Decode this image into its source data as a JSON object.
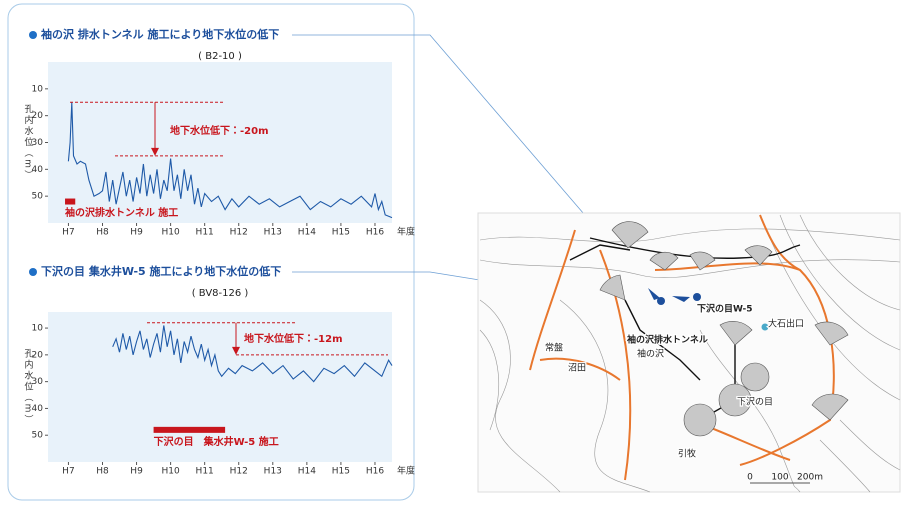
{
  "chart_data": [
    {
      "type": "line",
      "title": "袖の沢 排水トンネル 施工により地下水位の低下",
      "subtitle": "( B2-10 )",
      "ylabel": "孔内水位（m）",
      "xlabel": "年度",
      "color": "#1f5aa8",
      "inverted": true,
      "xlim": [
        6.4,
        16.5
      ],
      "ylim": [
        0,
        60
      ],
      "xticks": [
        {
          "value": 7,
          "label": "H7"
        },
        {
          "value": 8,
          "label": "H8"
        },
        {
          "value": 9,
          "label": "H9"
        },
        {
          "value": 10,
          "label": "H10"
        },
        {
          "value": 11,
          "label": "H11"
        },
        {
          "value": 12,
          "label": "H12"
        },
        {
          "value": 13,
          "label": "H13"
        },
        {
          "value": 14,
          "label": "H14"
        },
        {
          "value": 15,
          "label": "H15"
        },
        {
          "value": 16,
          "label": "H16"
        }
      ],
      "yticks": [
        10,
        20,
        30,
        40,
        50
      ],
      "x": [
        7.0,
        7.05,
        7.1,
        7.15,
        7.25,
        7.35,
        7.5,
        7.6,
        7.75,
        7.9,
        8.0,
        8.1,
        8.2,
        8.3,
        8.4,
        8.5,
        8.6,
        8.7,
        8.8,
        8.9,
        9.0,
        9.1,
        9.2,
        9.3,
        9.4,
        9.5,
        9.6,
        9.7,
        9.8,
        9.9,
        10.0,
        10.1,
        10.2,
        10.3,
        10.4,
        10.5,
        10.6,
        10.7,
        10.8,
        10.9,
        11.0,
        11.2,
        11.4,
        11.6,
        11.8,
        12.0,
        12.3,
        12.6,
        12.9,
        13.2,
        13.5,
        13.8,
        14.1,
        14.4,
        14.7,
        15.0,
        15.3,
        15.6,
        15.9,
        16.0,
        16.1,
        16.2,
        16.3,
        16.5
      ],
      "values": [
        37,
        30,
        15,
        35,
        38,
        37,
        38,
        44,
        50,
        49,
        48,
        41,
        52,
        44,
        53,
        47,
        41,
        50,
        44,
        52,
        43,
        49,
        38,
        50,
        42,
        49,
        40,
        51,
        44,
        48,
        36,
        48,
        42,
        51,
        40,
        48,
        42,
        53,
        47,
        54,
        49,
        52,
        50,
        55,
        51,
        54,
        50,
        53,
        51,
        54,
        52,
        50,
        55,
        52,
        54,
        51,
        53,
        50,
        54,
        49,
        55,
        52,
        57,
        58
      ],
      "annotation": {
        "text": "地下水位低下：-20m",
        "from": 15,
        "to": 35
      },
      "construction": {
        "label": "袖の沢排水トンネル 施工",
        "start": 6.9,
        "end": 7.2,
        "level": 52
      }
    },
    {
      "type": "line",
      "title": "下沢の目 集水井W-5 施工により地下水位の低下",
      "subtitle": "( BV8-126 )",
      "ylabel": "孔内水位（m）",
      "xlabel": "年度",
      "color": "#1f5aa8",
      "inverted": true,
      "xlim": [
        6.4,
        16.5
      ],
      "ylim": [
        4,
        60
      ],
      "xticks": [
        {
          "value": 7,
          "label": "H7"
        },
        {
          "value": 8,
          "label": "H8"
        },
        {
          "value": 9,
          "label": "H9"
        },
        {
          "value": 10,
          "label": "H10"
        },
        {
          "value": 11,
          "label": "H11"
        },
        {
          "value": 12,
          "label": "H12"
        },
        {
          "value": 13,
          "label": "H13"
        },
        {
          "value": 14,
          "label": "H14"
        },
        {
          "value": 15,
          "label": "H15"
        },
        {
          "value": 16,
          "label": "H16"
        }
      ],
      "yticks": [
        10,
        20,
        30,
        40,
        50
      ],
      "x": [
        8.3,
        8.4,
        8.5,
        8.6,
        8.7,
        8.8,
        8.9,
        9.0,
        9.1,
        9.2,
        9.3,
        9.4,
        9.5,
        9.6,
        9.7,
        9.8,
        9.9,
        10.0,
        10.1,
        10.2,
        10.3,
        10.4,
        10.5,
        10.6,
        10.7,
        10.8,
        10.9,
        11.0,
        11.1,
        11.2,
        11.3,
        11.4,
        11.5,
        11.7,
        11.9,
        12.1,
        12.4,
        12.7,
        13.0,
        13.3,
        13.6,
        13.9,
        14.2,
        14.5,
        14.8,
        15.1,
        15.4,
        15.7,
        16.0,
        16.2,
        16.4,
        16.5
      ],
      "values": [
        17,
        14,
        19,
        12,
        18,
        13,
        20,
        15,
        11,
        18,
        14,
        21,
        16,
        12,
        19,
        9,
        17,
        11,
        20,
        14,
        23,
        15,
        19,
        13,
        18,
        21,
        16,
        22,
        18,
        24,
        20,
        26,
        28,
        25,
        27,
        24,
        26,
        23,
        27,
        24,
        29,
        26,
        30,
        25,
        27,
        24,
        28,
        23,
        26,
        28,
        22,
        24
      ],
      "annotation": {
        "text": "地下水位低下：-12m",
        "from": 8,
        "to": 20
      },
      "construction": {
        "label": "下沢の目　集水井W-5 施工",
        "start": 9.5,
        "end": 11.6,
        "level": 48
      }
    }
  ],
  "map": {
    "labels": [
      "袖の沢排水トンネル",
      "下沢の目W-5",
      "大石出口",
      "袖の沢",
      "常盤",
      "沼田",
      "下沢の目",
      "引牧"
    ],
    "scale": [
      "0",
      "100",
      "200m"
    ]
  }
}
